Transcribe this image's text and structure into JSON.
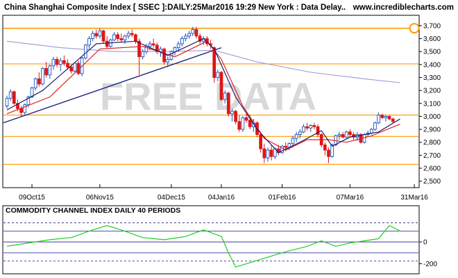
{
  "header": {
    "title": "China Shanghai Composite Index [ SSEC ]:DAILY:25Mar2016 19:29 New York : Data Delay..",
    "site": "www.incrediblecharts.com"
  },
  "watermark": "FREE DATA",
  "colors": {
    "background": "#ffffff",
    "frame": "#000000",
    "orange_line": "#ff9900",
    "up_candle": "#1a4fbf",
    "down_candle": "#e01515",
    "ma_fast": "#1c1c6c",
    "ma_slow": "#e02020",
    "ma_long": "#9a9ad8",
    "trendline": "#1a237e",
    "cci_line": "#22cc22",
    "cci_ref": "#3b3b9b",
    "watermark": "#d9d9d9"
  },
  "chart_data": [
    {
      "type": "candlestick",
      "title": "China Shanghai Composite Index [ SSEC ]:DAILY:25Mar2016 19:29 New York : Data Delay..",
      "ylim": [
        2450,
        3780
      ],
      "yticks": [
        "3,700",
        "3,600",
        "3,500",
        "3,400",
        "3,300",
        "3,200",
        "3,100",
        "3,000",
        "2,900",
        "2,800",
        "2,700",
        "2,600",
        "2,500"
      ],
      "ytick_values": [
        3700,
        3600,
        3500,
        3400,
        3300,
        3200,
        3100,
        3000,
        2900,
        2800,
        2700,
        2600,
        2500
      ],
      "x_dates": [
        "09Oct15",
        "06Nov15",
        "04Dec15",
        "04Jan16",
        "01Feb16",
        "07Mar16",
        "31Mar16"
      ],
      "grid": false,
      "horizontal_lines": [
        3680,
        3405,
        3010,
        2845,
        2630
      ],
      "alert_marker": {
        "date": "31Mar16",
        "value": 3680
      },
      "trendline": {
        "from": {
          "date": "29Sep15",
          "value": 2950
        },
        "to": {
          "date": "04Jan16",
          "value": 3530
        }
      },
      "candles": [
        {
          "o": 3080,
          "h": 3160,
          "l": 3060,
          "c": 3140
        },
        {
          "o": 3140,
          "h": 3210,
          "l": 3120,
          "c": 3190
        },
        {
          "o": 3190,
          "h": 3200,
          "l": 3090,
          "c": 3100
        },
        {
          "o": 3100,
          "h": 3130,
          "l": 3040,
          "c": 3060
        },
        {
          "o": 3060,
          "h": 3080,
          "l": 3000,
          "c": 3030
        },
        {
          "o": 3030,
          "h": 3100,
          "l": 3010,
          "c": 3090
        },
        {
          "o": 3090,
          "h": 3160,
          "l": 3070,
          "c": 3150
        },
        {
          "o": 3150,
          "h": 3230,
          "l": 3140,
          "c": 3220
        },
        {
          "o": 3220,
          "h": 3300,
          "l": 3200,
          "c": 3290
        },
        {
          "o": 3290,
          "h": 3340,
          "l": 3230,
          "c": 3250
        },
        {
          "o": 3250,
          "h": 3380,
          "l": 3240,
          "c": 3370
        },
        {
          "o": 3370,
          "h": 3420,
          "l": 3300,
          "c": 3320
        },
        {
          "o": 3320,
          "h": 3400,
          "l": 3290,
          "c": 3390
        },
        {
          "o": 3390,
          "h": 3460,
          "l": 3360,
          "c": 3440
        },
        {
          "o": 3440,
          "h": 3460,
          "l": 3380,
          "c": 3400
        },
        {
          "o": 3400,
          "h": 3450,
          "l": 3350,
          "c": 3430
        },
        {
          "o": 3430,
          "h": 3470,
          "l": 3390,
          "c": 3410
        },
        {
          "o": 3410,
          "h": 3440,
          "l": 3360,
          "c": 3380
        },
        {
          "o": 3380,
          "h": 3400,
          "l": 3330,
          "c": 3350
        },
        {
          "o": 3350,
          "h": 3420,
          "l": 3340,
          "c": 3410
        },
        {
          "o": 3410,
          "h": 3430,
          "l": 3320,
          "c": 3330
        },
        {
          "o": 3330,
          "h": 3460,
          "l": 3310,
          "c": 3450
        },
        {
          "o": 3450,
          "h": 3560,
          "l": 3440,
          "c": 3550
        },
        {
          "o": 3550,
          "h": 3620,
          "l": 3520,
          "c": 3600
        },
        {
          "o": 3600,
          "h": 3660,
          "l": 3580,
          "c": 3640
        },
        {
          "o": 3640,
          "h": 3670,
          "l": 3600,
          "c": 3620
        },
        {
          "o": 3620,
          "h": 3680,
          "l": 3600,
          "c": 3660
        },
        {
          "o": 3660,
          "h": 3670,
          "l": 3560,
          "c": 3580
        },
        {
          "o": 3580,
          "h": 3620,
          "l": 3520,
          "c": 3540
        },
        {
          "o": 3540,
          "h": 3600,
          "l": 3530,
          "c": 3590
        },
        {
          "o": 3590,
          "h": 3650,
          "l": 3580,
          "c": 3630
        },
        {
          "o": 3630,
          "h": 3650,
          "l": 3580,
          "c": 3600
        },
        {
          "o": 3600,
          "h": 3640,
          "l": 3570,
          "c": 3590
        },
        {
          "o": 3590,
          "h": 3630,
          "l": 3560,
          "c": 3620
        },
        {
          "o": 3620,
          "h": 3660,
          "l": 3600,
          "c": 3640
        },
        {
          "o": 3640,
          "h": 3670,
          "l": 3610,
          "c": 3630
        },
        {
          "o": 3630,
          "h": 3640,
          "l": 3560,
          "c": 3580
        },
        {
          "o": 3580,
          "h": 3600,
          "l": 3320,
          "c": 3460
        },
        {
          "o": 3460,
          "h": 3520,
          "l": 3440,
          "c": 3500
        },
        {
          "o": 3500,
          "h": 3560,
          "l": 3480,
          "c": 3540
        },
        {
          "o": 3540,
          "h": 3580,
          "l": 3510,
          "c": 3560
        },
        {
          "o": 3560,
          "h": 3600,
          "l": 3530,
          "c": 3550
        },
        {
          "o": 3550,
          "h": 3570,
          "l": 3480,
          "c": 3500
        },
        {
          "o": 3500,
          "h": 3540,
          "l": 3460,
          "c": 3520
        },
        {
          "o": 3520,
          "h": 3530,
          "l": 3400,
          "c": 3420
        },
        {
          "o": 3420,
          "h": 3460,
          "l": 3380,
          "c": 3440
        },
        {
          "o": 3440,
          "h": 3510,
          "l": 3430,
          "c": 3500
        },
        {
          "o": 3500,
          "h": 3540,
          "l": 3470,
          "c": 3530
        },
        {
          "o": 3530,
          "h": 3580,
          "l": 3500,
          "c": 3560
        },
        {
          "o": 3560,
          "h": 3620,
          "l": 3540,
          "c": 3600
        },
        {
          "o": 3600,
          "h": 3640,
          "l": 3580,
          "c": 3620
        },
        {
          "o": 3620,
          "h": 3660,
          "l": 3600,
          "c": 3640
        },
        {
          "o": 3640,
          "h": 3690,
          "l": 3620,
          "c": 3670
        },
        {
          "o": 3670,
          "h": 3690,
          "l": 3600,
          "c": 3620
        },
        {
          "o": 3620,
          "h": 3640,
          "l": 3560,
          "c": 3580
        },
        {
          "o": 3580,
          "h": 3620,
          "l": 3550,
          "c": 3600
        },
        {
          "o": 3600,
          "h": 3620,
          "l": 3540,
          "c": 3560
        },
        {
          "o": 3560,
          "h": 3590,
          "l": 3520,
          "c": 3550
        },
        {
          "o": 3530,
          "h": 3540,
          "l": 3260,
          "c": 3300
        },
        {
          "o": 3300,
          "h": 3360,
          "l": 3270,
          "c": 3340
        },
        {
          "o": 3340,
          "h": 3350,
          "l": 3120,
          "c": 3130
        },
        {
          "o": 3130,
          "h": 3200,
          "l": 3100,
          "c": 3180
        },
        {
          "o": 3180,
          "h": 3190,
          "l": 3000,
          "c": 3020
        },
        {
          "o": 3020,
          "h": 3060,
          "l": 2960,
          "c": 3040
        },
        {
          "o": 3040,
          "h": 3050,
          "l": 2940,
          "c": 2960
        },
        {
          "o": 2960,
          "h": 3010,
          "l": 2880,
          "c": 2900
        },
        {
          "o": 2900,
          "h": 3000,
          "l": 2880,
          "c": 2990
        },
        {
          "o": 2990,
          "h": 3020,
          "l": 2950,
          "c": 2970
        },
        {
          "o": 2970,
          "h": 3010,
          "l": 2900,
          "c": 2920
        },
        {
          "o": 2920,
          "h": 2980,
          "l": 2880,
          "c": 2950
        },
        {
          "o": 2950,
          "h": 2960,
          "l": 2840,
          "c": 2860
        },
        {
          "o": 2860,
          "h": 2880,
          "l": 2720,
          "c": 2750
        },
        {
          "o": 2750,
          "h": 2790,
          "l": 2640,
          "c": 2680
        },
        {
          "o": 2680,
          "h": 2760,
          "l": 2650,
          "c": 2740
        },
        {
          "o": 2740,
          "h": 2780,
          "l": 2660,
          "c": 2690
        },
        {
          "o": 2690,
          "h": 2760,
          "l": 2670,
          "c": 2750
        },
        {
          "o": 2750,
          "h": 2780,
          "l": 2700,
          "c": 2720
        },
        {
          "o": 2720,
          "h": 2780,
          "l": 2710,
          "c": 2770
        },
        {
          "o": 2770,
          "h": 2800,
          "l": 2730,
          "c": 2760
        },
        {
          "o": 2760,
          "h": 2800,
          "l": 2740,
          "c": 2790
        },
        {
          "o": 2790,
          "h": 2850,
          "l": 2760,
          "c": 2830
        },
        {
          "o": 2830,
          "h": 2880,
          "l": 2800,
          "c": 2860
        },
        {
          "o": 2860,
          "h": 2900,
          "l": 2830,
          "c": 2880
        },
        {
          "o": 2880,
          "h": 2940,
          "l": 2870,
          "c": 2920
        },
        {
          "o": 2920,
          "h": 2950,
          "l": 2890,
          "c": 2910
        },
        {
          "o": 2910,
          "h": 2940,
          "l": 2880,
          "c": 2930
        },
        {
          "o": 2930,
          "h": 2950,
          "l": 2900,
          "c": 2920
        },
        {
          "o": 2920,
          "h": 2940,
          "l": 2840,
          "c": 2860
        },
        {
          "o": 2860,
          "h": 2870,
          "l": 2760,
          "c": 2780
        },
        {
          "o": 2780,
          "h": 2800,
          "l": 2700,
          "c": 2740
        },
        {
          "o": 2740,
          "h": 2760,
          "l": 2640,
          "c": 2690
        },
        {
          "o": 2690,
          "h": 2790,
          "l": 2680,
          "c": 2780
        },
        {
          "o": 2780,
          "h": 2860,
          "l": 2770,
          "c": 2850
        },
        {
          "o": 2850,
          "h": 2880,
          "l": 2820,
          "c": 2860
        },
        {
          "o": 2860,
          "h": 2880,
          "l": 2830,
          "c": 2840
        },
        {
          "o": 2840,
          "h": 2890,
          "l": 2830,
          "c": 2880
        },
        {
          "o": 2880,
          "h": 2900,
          "l": 2840,
          "c": 2860
        },
        {
          "o": 2860,
          "h": 2880,
          "l": 2820,
          "c": 2840
        },
        {
          "o": 2840,
          "h": 2880,
          "l": 2810,
          "c": 2860
        },
        {
          "o": 2860,
          "h": 2870,
          "l": 2790,
          "c": 2800
        },
        {
          "o": 2800,
          "h": 2870,
          "l": 2790,
          "c": 2860
        },
        {
          "o": 2860,
          "h": 2890,
          "l": 2840,
          "c": 2870
        },
        {
          "o": 2870,
          "h": 2910,
          "l": 2860,
          "c": 2900
        },
        {
          "o": 2900,
          "h": 2960,
          "l": 2890,
          "c": 2950
        },
        {
          "o": 2950,
          "h": 3030,
          "l": 2940,
          "c": 3010
        },
        {
          "o": 3010,
          "h": 3020,
          "l": 2980,
          "c": 2990
        },
        {
          "o": 2990,
          "h": 3010,
          "l": 2960,
          "c": 3000
        },
        {
          "o": 3000,
          "h": 3010,
          "l": 2970,
          "c": 2980
        },
        {
          "o": 2980,
          "h": 2990,
          "l": 2950,
          "c": 2960
        }
      ],
      "moving_averages": [
        {
          "name": "fast",
          "color": "ma_fast",
          "values": [
            [
              0,
              3050
            ],
            [
              10,
              3200
            ],
            [
              25,
              3560
            ],
            [
              36,
              3580
            ],
            [
              45,
              3470
            ],
            [
              55,
              3600
            ],
            [
              58,
              3520
            ],
            [
              64,
              3150
            ],
            [
              70,
              2900
            ],
            [
              76,
              2720
            ],
            [
              82,
              2800
            ],
            [
              88,
              2890
            ],
            [
              91,
              2770
            ],
            [
              96,
              2840
            ],
            [
              104,
              2880
            ],
            [
              110,
              2980
            ]
          ]
        },
        {
          "name": "slow",
          "color": "ma_slow",
          "values": [
            [
              0,
              3020
            ],
            [
              12,
              3150
            ],
            [
              26,
              3520
            ],
            [
              38,
              3540
            ],
            [
              47,
              3460
            ],
            [
              56,
              3580
            ],
            [
              60,
              3440
            ],
            [
              66,
              3080
            ],
            [
              72,
              2830
            ],
            [
              78,
              2740
            ],
            [
              84,
              2820
            ],
            [
              90,
              2820
            ],
            [
              95,
              2800
            ],
            [
              102,
              2850
            ],
            [
              110,
              2940
            ]
          ]
        },
        {
          "name": "long",
          "color": "ma_long",
          "values": [
            [
              0,
              3580
            ],
            [
              15,
              3530
            ],
            [
              30,
              3500
            ],
            [
              45,
              3500
            ],
            [
              58,
              3510
            ],
            [
              70,
              3420
            ],
            [
              85,
              3340
            ],
            [
              100,
              3290
            ],
            [
              110,
              3260
            ]
          ]
        }
      ]
    },
    {
      "type": "line",
      "title": "COMMODITY CHANNEL INDEX DAILY 40 PERIODS",
      "ylim": [
        -280,
        230
      ],
      "yticks": [
        "0",
        "-200"
      ],
      "ytick_values": [
        0,
        -200
      ],
      "reference_lines": [
        175,
        100,
        0,
        -100,
        -175
      ],
      "series": [
        {
          "values": [
            [
              0,
              -40
            ],
            [
              6,
              -10
            ],
            [
              12,
              20
            ],
            [
              18,
              40
            ],
            [
              24,
              110
            ],
            [
              28,
              150
            ],
            [
              32,
              110
            ],
            [
              38,
              40
            ],
            [
              44,
              20
            ],
            [
              50,
              50
            ],
            [
              55,
              110
            ],
            [
              60,
              50
            ],
            [
              62,
              -100
            ],
            [
              64,
              -230
            ],
            [
              68,
              -190
            ],
            [
              72,
              -150
            ],
            [
              78,
              -90
            ],
            [
              84,
              -40
            ],
            [
              88,
              10
            ],
            [
              92,
              -40
            ],
            [
              96,
              -10
            ],
            [
              100,
              10
            ],
            [
              104,
              30
            ],
            [
              107,
              150
            ],
            [
              110,
              100
            ]
          ]
        }
      ]
    }
  ]
}
